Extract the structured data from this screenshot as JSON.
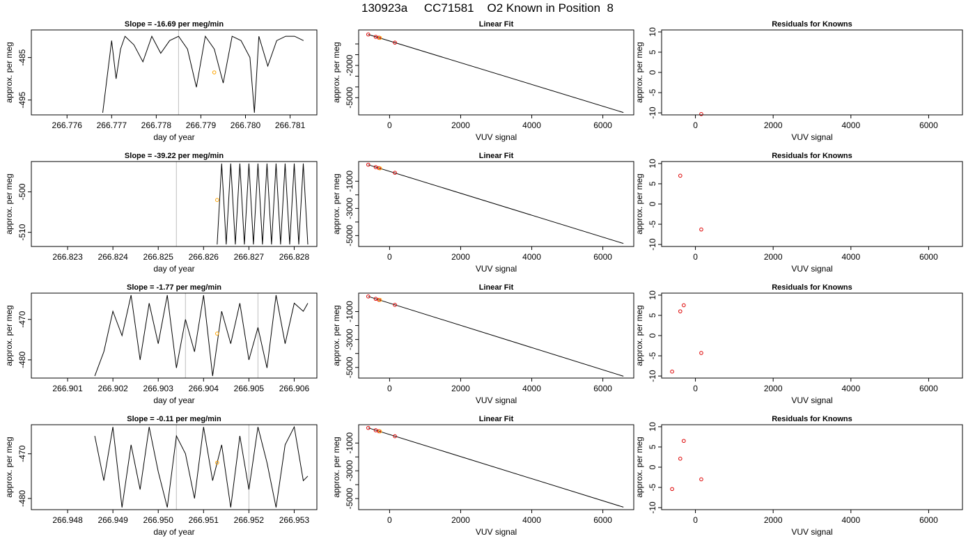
{
  "title": "130923a     CC71581    O2 Known in Position  8",
  "chart_data": [
    {
      "type": "line",
      "row": 0,
      "title": "Slope =  -16.69  per meg/min",
      "xlabel": "day of year",
      "ylabel": "approx. per meg",
      "xlim": [
        266.7752,
        266.7816
      ],
      "ylim": [
        -498.5,
        -478.5
      ],
      "xticks": [
        266.776,
        266.777,
        266.778,
        266.779,
        266.78,
        266.781
      ],
      "xtick_labels": [
        "266.776",
        "266.777",
        "266.778",
        "266.779",
        "266.780",
        "266.781"
      ],
      "yticks": [
        -485,
        -495
      ],
      "ytick_labels": [
        "-485",
        "-495"
      ],
      "vlines": [
        266.7785
      ],
      "x": [
        266.7768,
        266.777,
        266.7771,
        266.7772,
        266.7773,
        266.7775,
        266.7777,
        266.7779,
        266.7781,
        266.7783,
        266.7785,
        266.7787,
        266.7789,
        266.7791,
        266.7793,
        266.7795,
        266.7797,
        266.7799,
        266.7801,
        266.7802,
        266.7803,
        266.7805,
        266.7807,
        266.7809,
        266.7811,
        266.7813
      ],
      "y": [
        -498,
        -481,
        -490,
        -483,
        -480,
        -482,
        -486,
        -480,
        -484,
        -481,
        -480,
        -483,
        -492,
        -480,
        -483,
        -491,
        -480,
        -481,
        -485,
        -498,
        -480,
        -487,
        -481,
        -480,
        -480,
        -481
      ],
      "markers": [
        {
          "x": 266.7793,
          "y": -488.5,
          "color": "#FFA500"
        }
      ]
    },
    {
      "type": "line",
      "row": 1,
      "title": "Slope =  -39.22  per meg/min",
      "xlabel": "day of year",
      "ylabel": "approx. per meg",
      "xlim": [
        266.8222,
        266.8285
      ],
      "ylim": [
        -513.5,
        -492.5
      ],
      "xticks": [
        266.823,
        266.824,
        266.825,
        266.826,
        266.827,
        266.828
      ],
      "xtick_labels": [
        "266.823",
        "266.824",
        "266.825",
        "266.826",
        "266.827",
        "266.828"
      ],
      "yticks": [
        -500,
        -510
      ],
      "ytick_labels": [
        "-500",
        "-510"
      ],
      "vlines": [
        266.8254
      ],
      "x": [
        266.8263,
        266.8264,
        266.8265,
        266.8266,
        266.8267,
        266.8268,
        266.8269,
        266.827,
        266.8271,
        266.8272,
        266.8273,
        266.8274,
        266.8275,
        266.8276,
        266.8277,
        266.8278,
        266.8279,
        266.828,
        266.8281,
        266.8282,
        266.8283
      ],
      "y": [
        -513,
        -493,
        -513,
        -493,
        -513,
        -493,
        -513,
        -493,
        -513,
        -493,
        -513,
        -493,
        -513,
        -493,
        -513,
        -493,
        -513,
        -493,
        -513,
        -493,
        -513
      ],
      "markers": [
        {
          "x": 266.8263,
          "y": -502,
          "color": "#FFA500"
        }
      ]
    },
    {
      "type": "line",
      "row": 2,
      "title": "Slope =  -1.77  per meg/min",
      "xlabel": "day of year",
      "ylabel": "approx. per meg",
      "xlim": [
        266.9002,
        266.9065
      ],
      "ylim": [
        -484.5,
        -463.5
      ],
      "xticks": [
        266.901,
        266.902,
        266.903,
        266.904,
        266.905,
        266.906
      ],
      "xtick_labels": [
        "266.901",
        "266.902",
        "266.903",
        "266.904",
        "266.905",
        "266.906"
      ],
      "yticks": [
        -470,
        -480
      ],
      "ytick_labels": [
        "-470",
        "-480"
      ],
      "vlines": [
        266.9036,
        266.9052
      ],
      "x": [
        266.9016,
        266.9018,
        266.902,
        266.9022,
        266.9024,
        266.9026,
        266.9028,
        266.903,
        266.9032,
        266.9034,
        266.9036,
        266.9038,
        266.904,
        266.9042,
        266.9044,
        266.9046,
        266.9048,
        266.905,
        266.9052,
        266.9054,
        266.9056,
        266.9058,
        266.906,
        266.9062,
        266.9063
      ],
      "y": [
        -484,
        -478,
        -468,
        -474,
        -464,
        -480,
        -466,
        -476,
        -464,
        -482,
        -470,
        -478,
        -464,
        -484,
        -468,
        -476,
        -466,
        -480,
        -472,
        -482,
        -464,
        -476,
        -466,
        -468,
        -466
      ],
      "markers": [
        {
          "x": 266.9043,
          "y": -473.5,
          "color": "#FFA500"
        }
      ]
    },
    {
      "type": "line",
      "row": 3,
      "title": "Slope =  -0.11  per meg/min",
      "xlabel": "day of year",
      "ylabel": "approx. per meg",
      "xlim": [
        266.9472,
        266.9535
      ],
      "ylim": [
        -482.5,
        -463.5
      ],
      "xticks": [
        266.948,
        266.949,
        266.95,
        266.951,
        266.952,
        266.953
      ],
      "xtick_labels": [
        "266.948",
        "266.949",
        "266.950",
        "266.951",
        "266.952",
        "266.953"
      ],
      "yticks": [
        -470,
        -480
      ],
      "ytick_labels": [
        "-470",
        "-480"
      ],
      "vlines": [
        266.9504,
        266.952
      ],
      "x": [
        266.9486,
        266.9488,
        266.949,
        266.9492,
        266.9494,
        266.9496,
        266.9498,
        266.95,
        266.9502,
        266.9504,
        266.9506,
        266.9508,
        266.951,
        266.9512,
        266.9514,
        266.9516,
        266.9518,
        266.952,
        266.9522,
        266.9524,
        266.9526,
        266.9528,
        266.953,
        266.9532,
        266.9533
      ],
      "y": [
        -466,
        -476,
        -464,
        -482,
        -468,
        -478,
        -464,
        -474,
        -482,
        -466,
        -470,
        -480,
        -464,
        -476,
        -468,
        -482,
        -466,
        -478,
        -464,
        -472,
        -482,
        -468,
        -464,
        -476,
        -475
      ],
      "markers": [
        {
          "x": 266.9513,
          "y": -472,
          "color": "#FFA500"
        }
      ]
    },
    {
      "type": "scatter",
      "row": 0,
      "title": "Linear Fit",
      "xlabel": "VUV signal",
      "ylabel": "approx. per meg",
      "xlim": [
        -870,
        6870
      ],
      "ylim": [
        -6600,
        1300
      ],
      "xticks": [
        0,
        2000,
        4000,
        6000
      ],
      "xtick_labels": [
        "0",
        "2000",
        "4000",
        "6000"
      ],
      "yticks": [
        -5000,
        -4000,
        -3000,
        -2000,
        -1000,
        0
      ],
      "ytick_labels": [
        "-5000",
        "",
        "",
        "-2000",
        "",
        ""
      ],
      "line": {
        "x": [
          -600,
          6580
        ],
        "y": [
          880,
          -6380
        ]
      },
      "points": {
        "x": [
          -600,
          -390,
          -300,
          -270,
          150
        ],
        "y": [
          880,
          660,
          580,
          560,
          120
        ],
        "colors": [
          "#DD0000",
          "#DD0000",
          "#DD0000",
          "#FFA500",
          "#DD0000"
        ]
      }
    },
    {
      "type": "scatter",
      "row": 1,
      "title": "Linear Fit",
      "xlabel": "VUV signal",
      "ylabel": "approx. per meg",
      "xlim": [
        -870,
        6870
      ],
      "ylim": [
        -5800,
        450
      ],
      "xticks": [
        0,
        2000,
        4000,
        6000
      ],
      "xtick_labels": [
        "0",
        "2000",
        "4000",
        "6000"
      ],
      "yticks": [
        -5000,
        -4000,
        -3000,
        -2000,
        -1000
      ],
      "ytick_labels": [
        "-5000",
        "",
        "-3000",
        "",
        "-1000"
      ],
      "line": {
        "x": [
          -600,
          6580
        ],
        "y": [
          210,
          -5580
        ]
      },
      "points": {
        "x": [
          -600,
          -390,
          -300,
          -270,
          150
        ],
        "y": [
          220,
          40,
          -30,
          -50,
          -380
        ],
        "colors": [
          "#DD0000",
          "#DD0000",
          "#DD0000",
          "#FFA500",
          "#DD0000"
        ]
      }
    },
    {
      "type": "scatter",
      "row": 2,
      "title": "Linear Fit",
      "xlabel": "VUV signal",
      "ylabel": "approx. per meg",
      "xlim": [
        -870,
        6870
      ],
      "ylim": [
        -5760,
        320
      ],
      "xticks": [
        0,
        2000,
        4000,
        6000
      ],
      "xtick_labels": [
        "0",
        "2000",
        "4000",
        "6000"
      ],
      "yticks": [
        -5000,
        -4000,
        -3000,
        -2000,
        -1000
      ],
      "ytick_labels": [
        "-5000",
        "",
        "-3000",
        "",
        "-1000"
      ],
      "line": {
        "x": [
          -600,
          6580
        ],
        "y": [
          80,
          -5630
        ]
      },
      "points": {
        "x": [
          -600,
          -390,
          -300,
          -270,
          150
        ],
        "y": [
          80,
          -90,
          -160,
          -170,
          -520
        ],
        "colors": [
          "#DD0000",
          "#DD0000",
          "#DD0000",
          "#FFA500",
          "#DD0000"
        ]
      }
    },
    {
      "type": "scatter",
      "row": 3,
      "title": "Linear Fit",
      "xlabel": "VUV signal",
      "ylabel": "approx. per meg",
      "xlim": [
        -870,
        6870
      ],
      "ylim": [
        -5800,
        320
      ],
      "xticks": [
        0,
        2000,
        4000,
        6000
      ],
      "xtick_labels": [
        "0",
        "2000",
        "4000",
        "6000"
      ],
      "yticks": [
        -5000,
        -4000,
        -3000,
        -2000,
        -1000
      ],
      "ytick_labels": [
        "-5000",
        "",
        "-3000",
        "",
        "-1000"
      ],
      "line": {
        "x": [
          -600,
          6580
        ],
        "y": [
          90,
          -5620
        ]
      },
      "points": {
        "x": [
          -600,
          -390,
          -300,
          -270,
          150
        ],
        "y": [
          90,
          -80,
          -150,
          -160,
          -510
        ],
        "colors": [
          "#DD0000",
          "#DD0000",
          "#DD0000",
          "#FFA500",
          "#DD0000"
        ]
      }
    },
    {
      "type": "scatter",
      "row": 0,
      "title": "Residuals for Knowns",
      "xlabel": "VUV signal",
      "ylabel": "approx. per meg",
      "xlim": [
        -870,
        6870
      ],
      "ylim": [
        -10.5,
        10.5
      ],
      "xticks": [
        0,
        2000,
        4000,
        6000
      ],
      "xtick_labels": [
        "0",
        "2000",
        "4000",
        "6000"
      ],
      "yticks": [
        10,
        5,
        0,
        -5,
        -10
      ],
      "ytick_labels": [
        "10",
        "5",
        "0",
        "-5",
        "-10"
      ],
      "points": {
        "x": [
          150
        ],
        "y": [
          -10.3
        ],
        "colors": [
          "#DD0000"
        ]
      }
    },
    {
      "type": "scatter",
      "row": 1,
      "title": "Residuals for Knowns",
      "xlabel": "VUV signal",
      "ylabel": "approx. per meg",
      "xlim": [
        -870,
        6870
      ],
      "ylim": [
        -10.5,
        10.5
      ],
      "xticks": [
        0,
        2000,
        4000,
        6000
      ],
      "xtick_labels": [
        "0",
        "2000",
        "4000",
        "6000"
      ],
      "yticks": [
        10,
        5,
        0,
        -5,
        -10
      ],
      "ytick_labels": [
        "10",
        "5",
        "0",
        "-5",
        "-10"
      ],
      "points": {
        "x": [
          -390,
          150
        ],
        "y": [
          7,
          -6.3
        ],
        "colors": [
          "#DD0000",
          "#DD0000"
        ]
      }
    },
    {
      "type": "scatter",
      "row": 2,
      "title": "Residuals for Knowns",
      "xlabel": "VUV signal",
      "ylabel": "approx. per meg",
      "xlim": [
        -870,
        6870
      ],
      "ylim": [
        -10.5,
        10.5
      ],
      "xticks": [
        0,
        2000,
        4000,
        6000
      ],
      "xtick_labels": [
        "0",
        "2000",
        "4000",
        "6000"
      ],
      "yticks": [
        10,
        5,
        0,
        -5,
        -10
      ],
      "ytick_labels": [
        "10",
        "5",
        "0",
        "-5",
        "-10"
      ],
      "points": {
        "x": [
          -600,
          -390,
          -300,
          150
        ],
        "y": [
          -8.9,
          6,
          7.5,
          -4.3
        ],
        "colors": [
          "#DD0000",
          "#DD0000",
          "#DD0000",
          "#DD0000"
        ]
      }
    },
    {
      "type": "scatter",
      "row": 3,
      "title": "Residuals for Knowns",
      "xlabel": "VUV signal",
      "ylabel": "approx. per meg",
      "xlim": [
        -870,
        6870
      ],
      "ylim": [
        -10.5,
        10.5
      ],
      "xticks": [
        0,
        2000,
        4000,
        6000
      ],
      "xtick_labels": [
        "0",
        "2000",
        "4000",
        "6000"
      ],
      "yticks": [
        10,
        5,
        0,
        -5,
        -10
      ],
      "ytick_labels": [
        "10",
        "5",
        "0",
        "-5",
        "-10"
      ],
      "points": {
        "x": [
          -600,
          -390,
          -300,
          150
        ],
        "y": [
          -5.4,
          2.1,
          6.5,
          -3
        ],
        "colors": [
          "#DD0000",
          "#DD0000",
          "#DD0000",
          "#DD0000"
        ]
      }
    }
  ]
}
